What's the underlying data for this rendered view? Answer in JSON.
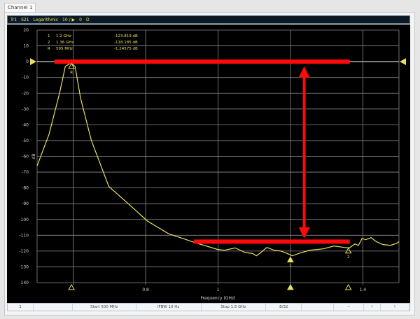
{
  "window": {
    "tab_label": "Channel 1"
  },
  "trace_header": {
    "items": [
      "Tr1",
      "S21",
      "Logarithmic",
      "10 / ▶",
      "0",
      "D"
    ]
  },
  "markers": [
    {
      "id": "1",
      "freq_label": "1.2 GHz",
      "value_label": "-123.819 dB",
      "freq_ghz": 1.2,
      "db": -123.819,
      "filled": true
    },
    {
      "id": "2",
      "freq_label": "1.36 GHz",
      "value_label": "-118.185 dB",
      "freq_ghz": 1.36,
      "db": -118.185,
      "filled": false
    },
    {
      "id": "R",
      "freq_label": "595 MHz",
      "value_label": "-1.24575 dB",
      "freq_ghz": 0.595,
      "db": -1.24575,
      "filled": false
    }
  ],
  "status_bar": {
    "cells": [
      "1",
      "",
      "Start 500 MHz",
      "IFBW 10 Hz",
      "Stop 1.5 GHz",
      "8/32",
      "",
      "--",
      "!",
      "!"
    ]
  },
  "colors": {
    "trace": "#e8e060",
    "annotation": "#ff0a0a",
    "background": "#000000",
    "grid": "#8a8a8a"
  },
  "chart_data": {
    "type": "line",
    "xlabel": "Frequency (GHz)",
    "ylabel": "dB",
    "xlim": [
      0.5,
      1.5
    ],
    "ylim": [
      -140,
      20
    ],
    "xticks": [
      {
        "v": 0.6,
        "label": ""
      },
      {
        "v": 0.8,
        "label": "0.8"
      },
      {
        "v": 1.0,
        "label": "1"
      },
      {
        "v": 1.2,
        "label": ""
      },
      {
        "v": 1.4,
        "label": "1.4"
      }
    ],
    "yticks": [
      20,
      10,
      0,
      -10,
      -20,
      -30,
      -40,
      -50,
      -60,
      -70,
      -80,
      -90,
      -100,
      -110,
      -120,
      -130,
      -140
    ],
    "grid": true,
    "reference_level_db": 0,
    "series": [
      {
        "x": [
          0.5,
          0.533,
          0.562,
          0.578,
          0.591,
          0.595,
          0.605,
          0.62,
          0.65,
          0.698,
          0.747,
          0.805,
          0.863,
          0.941,
          0.999,
          1.018,
          1.047,
          1.076,
          1.095,
          1.106,
          1.115,
          1.135,
          1.155,
          1.174,
          1.193,
          1.205,
          1.223,
          1.252,
          1.291,
          1.32,
          1.349,
          1.363,
          1.378,
          1.388,
          1.398,
          1.408,
          1.423,
          1.437,
          1.456,
          1.476,
          1.495,
          1.5
        ],
        "y": [
          -66,
          -46,
          -20,
          -3,
          -1.2,
          -1.2,
          -3,
          -23,
          -50,
          -79,
          -89,
          -101,
          -109,
          -115,
          -119,
          -119.5,
          -118,
          -121,
          -121.5,
          -123,
          -121.5,
          -117.7,
          -119.5,
          -120,
          -121.7,
          -123,
          -121.5,
          -119.5,
          -118.6,
          -116.8,
          -117.7,
          -118,
          -115.5,
          -116.4,
          -112,
          -112.8,
          -111.5,
          -114,
          -115.9,
          -116.4,
          -115,
          -114
        ]
      }
    ],
    "annotations": [
      {
        "type": "hline",
        "db": 0,
        "from_ghz": 0.548,
        "to_ghz": 1.364
      },
      {
        "type": "hline",
        "db": -114,
        "from_ghz": 0.933,
        "to_ghz": 1.364
      },
      {
        "type": "double-arrow",
        "x_ghz": 1.238,
        "from_db": -3,
        "to_db": -112
      }
    ]
  }
}
